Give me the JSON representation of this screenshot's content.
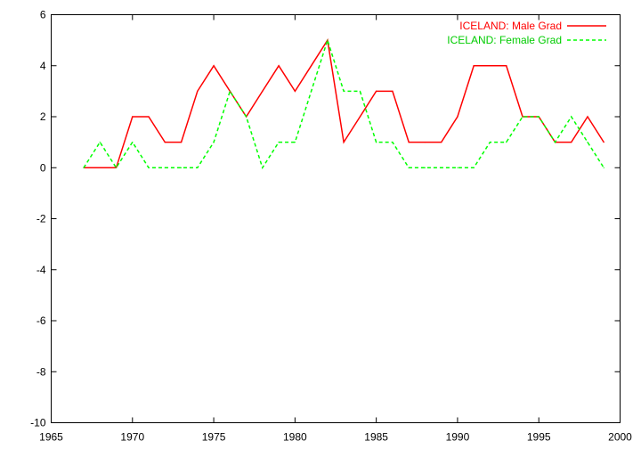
{
  "chart_data": {
    "type": "line",
    "title": "",
    "xlabel": "",
    "ylabel": "",
    "xlim": [
      1965,
      2000
    ],
    "ylim": [
      -10,
      6
    ],
    "xticks": [
      1965,
      1970,
      1975,
      1980,
      1985,
      1990,
      1995,
      2000
    ],
    "yticks": [
      -10,
      -8,
      -6,
      -4,
      -2,
      0,
      2,
      4,
      6
    ],
    "grid": false,
    "legend_position": "top-right",
    "series": [
      {
        "name": "ICELAND: Male Grad",
        "color": "#ff0000",
        "dash": "solid",
        "x": [
          1967,
          1968,
          1969,
          1970,
          1971,
          1972,
          1973,
          1974,
          1975,
          1976,
          1977,
          1978,
          1979,
          1980,
          1981,
          1982,
          1983,
          1984,
          1985,
          1986,
          1987,
          1988,
          1989,
          1990,
          1991,
          1992,
          1993,
          1994,
          1995,
          1996,
          1997,
          1998,
          1999
        ],
        "values": [
          0,
          0,
          0,
          2,
          2,
          1,
          1,
          3,
          4,
          3,
          2,
          3,
          4,
          3,
          4,
          5,
          1,
          2,
          3,
          3,
          1,
          1,
          1,
          2,
          4,
          4,
          4,
          2,
          2,
          1,
          1,
          2,
          1
        ]
      },
      {
        "name": "ICELAND: Female Grad",
        "color": "#00ff00",
        "dash": "dashed",
        "x": [
          1967,
          1968,
          1969,
          1970,
          1971,
          1972,
          1973,
          1974,
          1975,
          1976,
          1977,
          1978,
          1979,
          1980,
          1981,
          1982,
          1983,
          1984,
          1985,
          1986,
          1987,
          1988,
          1989,
          1990,
          1991,
          1992,
          1993,
          1994,
          1995,
          1996,
          1997,
          1998,
          1999
        ],
        "values": [
          0,
          1,
          0,
          1,
          0,
          0,
          0,
          0,
          1,
          3,
          2,
          0,
          1,
          1,
          3,
          5,
          3,
          3,
          1,
          1,
          0,
          0,
          0,
          0,
          0,
          1,
          1,
          2,
          2,
          1,
          2,
          1,
          0
        ]
      }
    ]
  }
}
